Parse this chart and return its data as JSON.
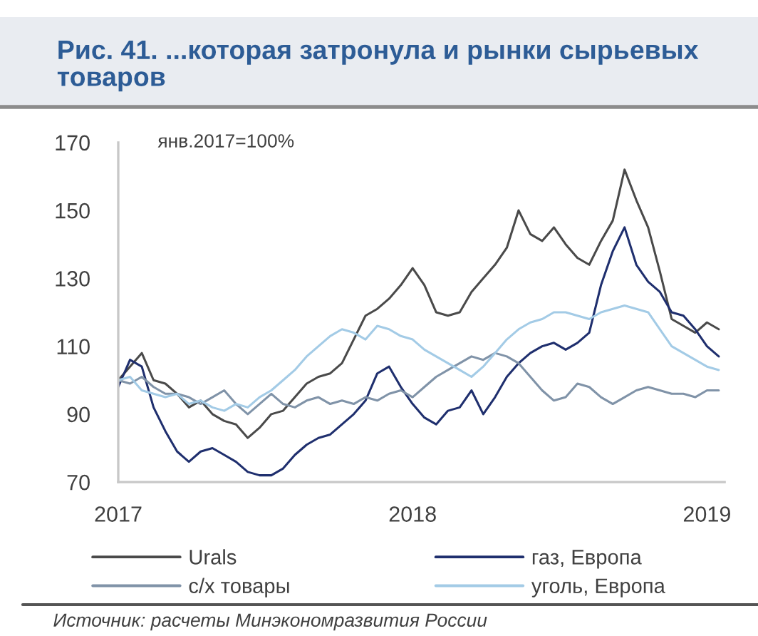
{
  "chart_data": {
    "type": "line",
    "title": "Рис. 41. ...которая затронула и рынки сырьевых товаров",
    "ylabel": "янв.2017=100%",
    "annotations": [
      "Источник: расчеты Минэкономразвития России"
    ],
    "x": [
      2017,
      2017.04,
      2017.08,
      2017.12,
      2017.16,
      2017.2,
      2017.24,
      2017.28,
      2017.32,
      2017.36,
      2017.4,
      2017.44,
      2017.48,
      2017.52,
      2017.56,
      2017.6,
      2017.64,
      2017.68,
      2017.72,
      2017.76,
      2017.8,
      2017.84,
      2017.88,
      2017.92,
      2017.96,
      2018,
      2018.04,
      2018.08,
      2018.12,
      2018.16,
      2018.2,
      2018.24,
      2018.28,
      2018.32,
      2018.36,
      2018.4,
      2018.44,
      2018.48,
      2018.52,
      2018.56,
      2018.6,
      2018.64,
      2018.68,
      2018.72,
      2018.76,
      2018.8,
      2018.84,
      2018.88,
      2018.92,
      2018.96,
      2019,
      2019.04
    ],
    "series": [
      {
        "name": "Urals",
        "color": "#4a4a4a",
        "values": [
          100,
          104,
          108,
          100,
          99,
          96,
          92,
          94,
          90,
          88,
          87,
          83,
          86,
          90,
          91,
          95,
          99,
          101,
          102,
          105,
          112,
          119,
          121,
          124,
          128,
          133,
          128,
          120,
          119,
          120,
          126,
          130,
          134,
          139,
          150,
          143,
          141,
          145,
          140,
          136,
          134,
          141,
          147,
          162,
          153,
          145,
          132,
          118,
          116,
          114,
          117,
          115
        ]
      },
      {
        "name": "газ, Европа",
        "color": "#1f2f6e",
        "values": [
          98,
          106,
          104,
          92,
          85,
          79,
          76,
          79,
          80,
          78,
          76,
          73,
          72,
          72,
          74,
          78,
          81,
          83,
          84,
          87,
          90,
          94,
          102,
          104,
          98,
          93,
          89,
          87,
          91,
          92,
          97,
          90,
          95,
          101,
          105,
          108,
          110,
          111,
          109,
          111,
          114,
          128,
          138,
          145,
          134,
          129,
          126,
          120,
          119,
          115,
          110,
          107
        ]
      },
      {
        "name": "с/х товары",
        "color": "#8093a8",
        "values": [
          100,
          99,
          101,
          98,
          96,
          96,
          95,
          93,
          95,
          97,
          93,
          90,
          93,
          96,
          93,
          92,
          94,
          95,
          93,
          94,
          93,
          95,
          94,
          96,
          97,
          95,
          98,
          101,
          103,
          105,
          107,
          106,
          108,
          107,
          105,
          101,
          97,
          94,
          95,
          99,
          98,
          95,
          93,
          95,
          97,
          98,
          97,
          96,
          96,
          95,
          97,
          97
        ]
      },
      {
        "name": "уголь, Европа",
        "color": "#a3cbe6",
        "values": [
          100,
          101,
          97,
          96,
          95,
          96,
          93,
          94,
          92,
          91,
          93,
          92,
          95,
          97,
          100,
          103,
          107,
          110,
          113,
          115,
          114,
          112,
          116,
          115,
          113,
          112,
          109,
          107,
          105,
          103,
          101,
          104,
          108,
          112,
          115,
          117,
          118,
          120,
          120,
          119,
          118,
          120,
          121,
          122,
          121,
          120,
          115,
          110,
          108,
          106,
          104,
          103
        ]
      }
    ],
    "xlim": [
      2017,
      2019.06
    ],
    "xticks": [
      2017,
      2018,
      2019
    ],
    "ylim": [
      70,
      170
    ],
    "yticks": [
      70,
      90,
      110,
      130,
      150,
      170
    ],
    "legend": "bottom"
  }
}
